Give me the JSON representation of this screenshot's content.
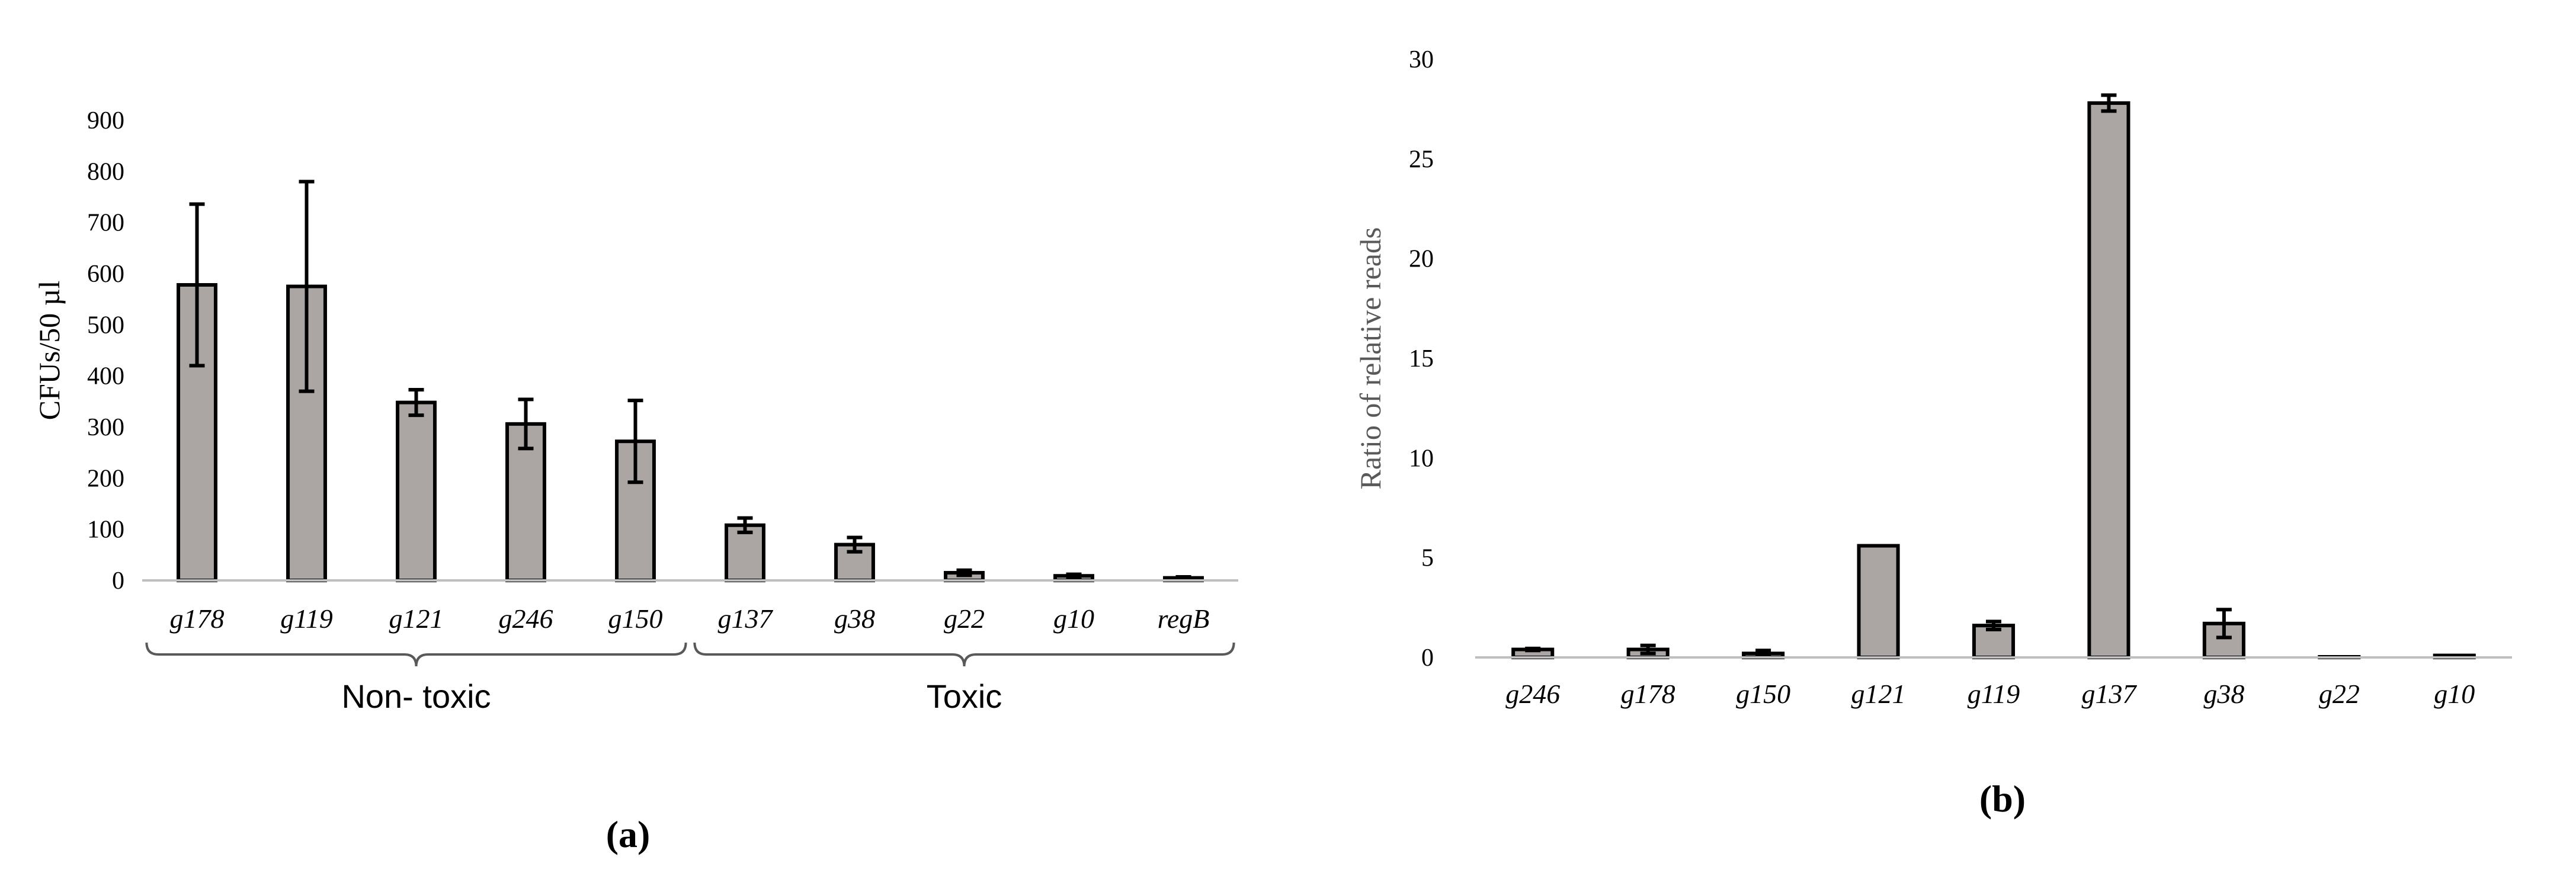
{
  "colors": {
    "bar_fill": "#aba6a3",
    "bar_stroke": "#000000",
    "axis": "#bfbfbf"
  },
  "chart_data": [
    {
      "type": "bar",
      "panel_label": "(a)",
      "ylabel": "CFUs/50 µl",
      "ylim": [
        0,
        900
      ],
      "yticks": [
        0,
        100,
        200,
        300,
        400,
        500,
        600,
        700,
        800,
        900
      ],
      "categories": [
        "g178",
        "g119",
        "g121",
        "g246",
        "g150",
        "g137",
        "g38",
        "g22",
        "g10",
        "regB"
      ],
      "series": [
        {
          "values": [
            578,
            575,
            348,
            306,
            272,
            108,
            70,
            15,
            9,
            5
          ],
          "error": [
            158,
            205,
            25,
            48,
            80,
            14,
            14,
            5,
            3,
            2
          ]
        }
      ],
      "groups": [
        {
          "label": "Non- toxic",
          "from": 0,
          "to": 4
        },
        {
          "label": "Toxic",
          "from": 5,
          "to": 9
        }
      ],
      "grid": false
    },
    {
      "type": "bar",
      "panel_label": "(b)",
      "ylabel": "Ratio of relative reads",
      "ylim": [
        0,
        30
      ],
      "yticks": [
        0,
        5,
        10,
        15,
        20,
        25,
        30
      ],
      "categories": [
        "g246",
        "g178",
        "g150",
        "g121",
        "g119",
        "g137",
        "g38",
        "g22",
        "g10"
      ],
      "series": [
        {
          "values": [
            0.4,
            0.4,
            0.2,
            5.6,
            1.6,
            27.8,
            1.7,
            0.03,
            0.1
          ],
          "error": [
            0.05,
            0.2,
            0.15,
            0,
            0.2,
            0.4,
            0.7,
            0,
            0
          ]
        }
      ],
      "grid": false
    }
  ]
}
